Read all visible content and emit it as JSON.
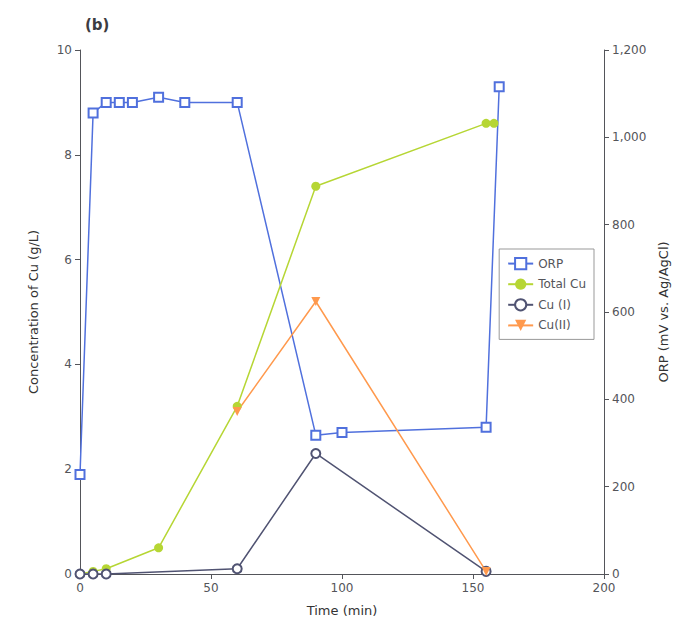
{
  "chart_data": {
    "type": "line",
    "title": "(b)",
    "xlabel": "Time (min)",
    "ylabel": "Concentration of Cu (g/L)",
    "y2label": "ORP (mV vs. Ag/AgCl)",
    "xlim": [
      0,
      200
    ],
    "ylim": [
      0,
      10
    ],
    "y2lim": [
      0,
      1200
    ],
    "xticks": [
      0,
      50,
      100,
      150,
      200
    ],
    "yticks": [
      0,
      2,
      4,
      6,
      8,
      10
    ],
    "y2ticks": [
      0,
      200,
      400,
      600,
      800,
      1000,
      1200
    ],
    "grid": false,
    "legend": "right",
    "series": [
      {
        "name": "ORP",
        "axis": "y2",
        "marker": "square-open",
        "x": [
          0,
          5,
          10,
          15,
          20,
          30,
          40,
          60,
          90,
          100,
          155,
          160
        ],
        "values": [
          228,
          1056,
          1080,
          1080,
          1080,
          1092,
          1080,
          1080,
          318,
          324,
          336,
          1116
        ]
      },
      {
        "name": "Total Cu",
        "marker": "circle",
        "x": [
          0,
          5,
          10,
          30,
          60,
          90,
          155,
          158
        ],
        "values": [
          0,
          0.05,
          0.1,
          0.5,
          3.2,
          7.4,
          8.6,
          8.6
        ]
      },
      {
        "name": "Cu (I)",
        "marker": "circle-open",
        "x": [
          0,
          5,
          10,
          60,
          90,
          155
        ],
        "values": [
          0,
          0,
          0,
          0.1,
          2.3,
          0.05
        ]
      },
      {
        "name": "Cu(II)",
        "marker": "triangle-down",
        "x": [
          60,
          90,
          155
        ],
        "values": [
          3.1,
          5.2,
          0.05
        ]
      }
    ]
  }
}
